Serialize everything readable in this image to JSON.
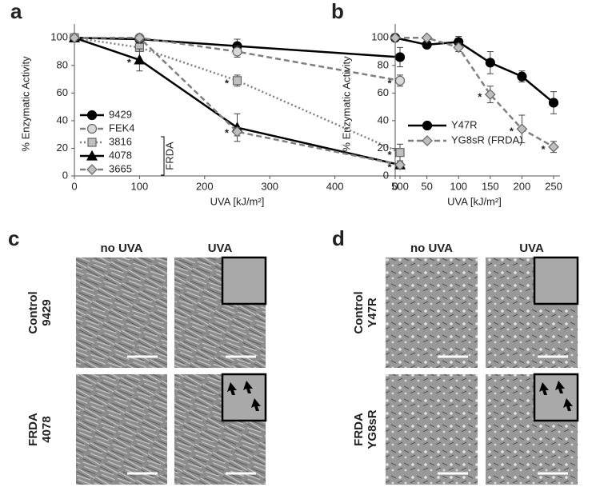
{
  "chart_data": [
    {
      "type": "line",
      "label": "a",
      "xlabel": "UVA [kJ/m²]",
      "ylabel": "% Enzymatic Activity",
      "x": [
        0,
        100,
        250,
        500
      ],
      "xlim": [
        0,
        500
      ],
      "xticks": [
        0,
        100,
        200,
        300,
        400,
        500
      ],
      "ylim": [
        0,
        110
      ],
      "yticks": [
        0,
        20,
        40,
        60,
        80,
        100
      ],
      "legend": "lower left",
      "legend_group": "FRDA",
      "series": [
        {
          "name": "9429",
          "color": "#000000",
          "dash": "solid",
          "marker": "circle",
          "marker_fill": "#000000",
          "values": [
            100,
            99,
            94,
            86
          ],
          "errors": [
            0,
            1,
            5,
            7
          ]
        },
        {
          "name": "FEK4",
          "color": "#7f7f7f",
          "dash": "dashed",
          "marker": "circle",
          "marker_fill": "#d9d9d9",
          "values": [
            100,
            100,
            90,
            69
          ],
          "errors": [
            0,
            0,
            4,
            4
          ]
        },
        {
          "name": "3816",
          "color": "#7f7f7f",
          "dash": "dotted",
          "marker": "square",
          "marker_fill": "#bfbfbf",
          "values": [
            100,
            93,
            69,
            17
          ],
          "errors": [
            0,
            3,
            4,
            6
          ]
        },
        {
          "name": "4078",
          "color": "#000000",
          "dash": "solid",
          "marker": "triangle",
          "marker_fill": "#000000",
          "values": [
            100,
            84,
            35,
            8
          ],
          "errors": [
            0,
            8,
            10,
            2
          ]
        },
        {
          "name": "3665",
          "color": "#7f7f7f",
          "dash": "dashed",
          "marker": "diamond",
          "marker_fill": "#bfbfbf",
          "values": [
            100,
            100,
            32,
            8
          ],
          "errors": [
            0,
            0,
            3,
            2
          ]
        }
      ],
      "annotations": [
        {
          "text": "*",
          "x": 100,
          "y": 84
        },
        {
          "text": "*",
          "x": 250,
          "y": 69
        },
        {
          "text": "*",
          "x": 250,
          "y": 33
        },
        {
          "text": "*",
          "x": 500,
          "y": 69
        },
        {
          "text": "*",
          "x": 500,
          "y": 17
        },
        {
          "text": "*",
          "x": 500,
          "y": 8
        }
      ]
    },
    {
      "type": "line",
      "label": "b",
      "xlabel": "UVA [kJ/m²]",
      "ylabel": "% Enzymatic Activity",
      "x": [
        0,
        50,
        100,
        150,
        200,
        250
      ],
      "xlim": [
        0,
        250
      ],
      "xticks": [
        0,
        50,
        100,
        150,
        200,
        250
      ],
      "ylim": [
        0,
        110
      ],
      "yticks": [
        0,
        20,
        40,
        60,
        80,
        100
      ],
      "legend": "lower left",
      "series": [
        {
          "name": "Y47R",
          "color": "#000000",
          "dash": "solid",
          "marker": "circle",
          "marker_fill": "#000000",
          "values": [
            100,
            95,
            97,
            82,
            72,
            53
          ],
          "errors": [
            0,
            1,
            4,
            8,
            4,
            8
          ]
        },
        {
          "name": "YG8sR (FRDA)",
          "color": "#7f7f7f",
          "dash": "dashed",
          "marker": "diamond",
          "marker_fill": "#bfbfbf",
          "values": [
            100,
            100,
            93,
            59,
            34,
            21
          ],
          "errors": [
            0,
            1,
            3,
            6,
            10,
            4
          ]
        }
      ],
      "annotations": [
        {
          "text": "*",
          "x": 150,
          "y": 59
        },
        {
          "text": "*",
          "x": 200,
          "y": 34
        },
        {
          "text": "*",
          "x": 250,
          "y": 21
        }
      ]
    }
  ],
  "micrographs": [
    {
      "label": "c",
      "columns": [
        "no UVA",
        "UVA"
      ],
      "rows": [
        [
          "Control",
          "9429"
        ],
        [
          "FRDA",
          "4078"
        ]
      ]
    },
    {
      "label": "d",
      "columns": [
        "no UVA",
        "UVA"
      ],
      "rows": [
        [
          "Control",
          "Y47R"
        ],
        [
          "FRDA",
          "YG8sR"
        ]
      ]
    }
  ]
}
